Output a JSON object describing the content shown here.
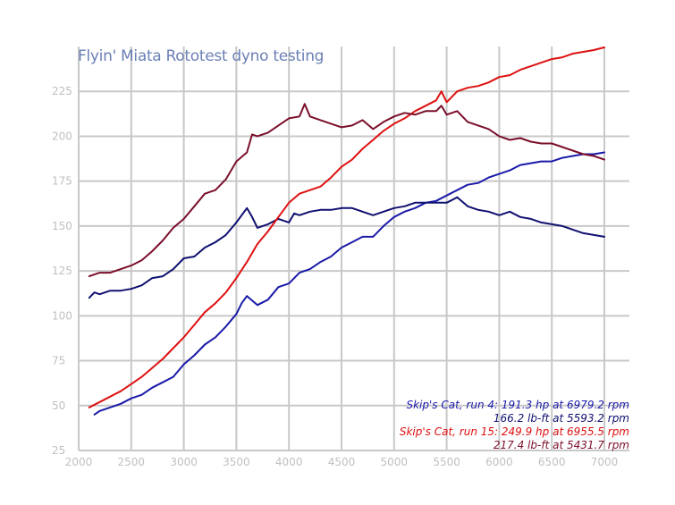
{
  "chart_data": {
    "type": "line",
    "title": "Flyin' Miata Rototest dyno testing",
    "xlabel": "",
    "ylabel": "",
    "xlim": [
      2000,
      7000
    ],
    "ylim": [
      25,
      250
    ],
    "grid": true,
    "x_ticks": [
      "2000",
      "2500",
      "3000",
      "3500",
      "4000",
      "4500",
      "5000",
      "5500",
      "6000",
      "6500",
      "7000"
    ],
    "y_ticks": [
      "25",
      "50",
      "75",
      "100",
      "125",
      "150",
      "175",
      "200",
      "225"
    ],
    "legend_position": "bottom-right",
    "legend": [
      {
        "text": "Skip's Cat, run 4: 191.3 hp at 6979.2 rpm",
        "color": "#1a1aa8"
      },
      {
        "text": "166.2 lb-ft at 5593.2 rpm",
        "color": "#101070"
      },
      {
        "text": "Skip's Cat, run 15: 249.9 hp at 6955.5 rpm",
        "color": "#dd1111"
      },
      {
        "text": "217.4 lb-ft at 5431.7 rpm",
        "color": "#7a0f2a"
      }
    ],
    "series": [
      {
        "name": "Skip's Cat, run 4 hp",
        "color": "#1a1aa8",
        "x": [
          2150,
          2200,
          2300,
          2400,
          2500,
          2600,
          2700,
          2800,
          2900,
          3000,
          3100,
          3200,
          3300,
          3400,
          3500,
          3550,
          3600,
          3700,
          3800,
          3900,
          4000,
          4100,
          4200,
          4300,
          4400,
          4500,
          4600,
          4700,
          4800,
          4900,
          5000,
          5100,
          5200,
          5300,
          5400,
          5500,
          5600,
          5700,
          5800,
          5900,
          6000,
          6100,
          6200,
          6300,
          6400,
          6500,
          6600,
          6700,
          6800,
          6900,
          7000
        ],
        "y": [
          45,
          47,
          49,
          51,
          54,
          56,
          60,
          63,
          66,
          73,
          78,
          84,
          88,
          94,
          101,
          107,
          111,
          106,
          109,
          116,
          118,
          124,
          126,
          130,
          133,
          138,
          141,
          144,
          144,
          150,
          155,
          158,
          160,
          163,
          164,
          167,
          170,
          173,
          174,
          177,
          179,
          181,
          184,
          185,
          186,
          186,
          188,
          189,
          190,
          190,
          191
        ]
      },
      {
        "name": "Skip's Cat, run 4 lb-ft",
        "color": "#101070",
        "x": [
          2100,
          2150,
          2200,
          2300,
          2400,
          2500,
          2600,
          2700,
          2800,
          2900,
          3000,
          3100,
          3200,
          3300,
          3400,
          3500,
          3600,
          3650,
          3700,
          3800,
          3900,
          4000,
          4050,
          4100,
          4200,
          4300,
          4400,
          4500,
          4600,
          4700,
          4800,
          4900,
          5000,
          5100,
          5200,
          5300,
          5400,
          5500,
          5600,
          5700,
          5800,
          5900,
          6000,
          6100,
          6200,
          6300,
          6400,
          6500,
          6600,
          6700,
          6800,
          6900,
          7000
        ],
        "y": [
          110,
          113,
          112,
          114,
          114,
          115,
          117,
          121,
          122,
          126,
          132,
          133,
          138,
          141,
          145,
          152,
          160,
          155,
          149,
          151,
          154,
          152,
          157,
          156,
          158,
          159,
          159,
          160,
          160,
          158,
          156,
          158,
          160,
          161,
          163,
          163,
          163,
          163,
          166,
          161,
          159,
          158,
          156,
          158,
          155,
          154,
          152,
          151,
          150,
          148,
          146,
          145,
          144
        ]
      },
      {
        "name": "Skip's Cat, run 15 hp",
        "color": "#dd1111",
        "x": [
          2100,
          2200,
          2300,
          2400,
          2500,
          2600,
          2700,
          2800,
          2900,
          3000,
          3100,
          3200,
          3300,
          3400,
          3500,
          3600,
          3700,
          3800,
          3900,
          4000,
          4100,
          4200,
          4300,
          4400,
          4500,
          4600,
          4700,
          4800,
          4900,
          5000,
          5100,
          5200,
          5300,
          5400,
          5450,
          5500,
          5600,
          5700,
          5800,
          5900,
          6000,
          6100,
          6200,
          6300,
          6400,
          6500,
          6600,
          6700,
          6800,
          6900,
          7000
        ],
        "y": [
          49,
          52,
          55,
          58,
          62,
          66,
          71,
          76,
          82,
          88,
          95,
          102,
          107,
          113,
          121,
          130,
          140,
          147,
          155,
          163,
          168,
          170,
          172,
          177,
          183,
          187,
          193,
          198,
          203,
          207,
          210,
          214,
          217,
          220,
          225,
          219,
          225,
          227,
          228,
          230,
          233,
          234,
          237,
          239,
          241,
          243,
          244,
          246,
          247,
          248,
          249.5
        ]
      },
      {
        "name": "Skip's Cat, run 15 lb-ft",
        "color": "#7a0f2a",
        "x": [
          2100,
          2200,
          2300,
          2400,
          2500,
          2600,
          2700,
          2800,
          2900,
          3000,
          3100,
          3200,
          3300,
          3400,
          3500,
          3600,
          3650,
          3700,
          3800,
          3900,
          4000,
          4100,
          4150,
          4200,
          4300,
          4400,
          4500,
          4600,
          4700,
          4800,
          4900,
          5000,
          5100,
          5200,
          5300,
          5400,
          5450,
          5500,
          5600,
          5700,
          5800,
          5900,
          6000,
          6100,
          6200,
          6300,
          6400,
          6500,
          6600,
          6700,
          6800,
          6900,
          7000
        ],
        "y": [
          122,
          124,
          124,
          126,
          128,
          131,
          136,
          142,
          149,
          154,
          161,
          168,
          170,
          176,
          186,
          191,
          201,
          200,
          202,
          206,
          210,
          211,
          218,
          211,
          209,
          207,
          205,
          206,
          209,
          204,
          208,
          211,
          213,
          212,
          214,
          214,
          217,
          212,
          214,
          208,
          206,
          204,
          200,
          198,
          199,
          197,
          196,
          196,
          194,
          192,
          190,
          189,
          187
        ]
      }
    ]
  }
}
